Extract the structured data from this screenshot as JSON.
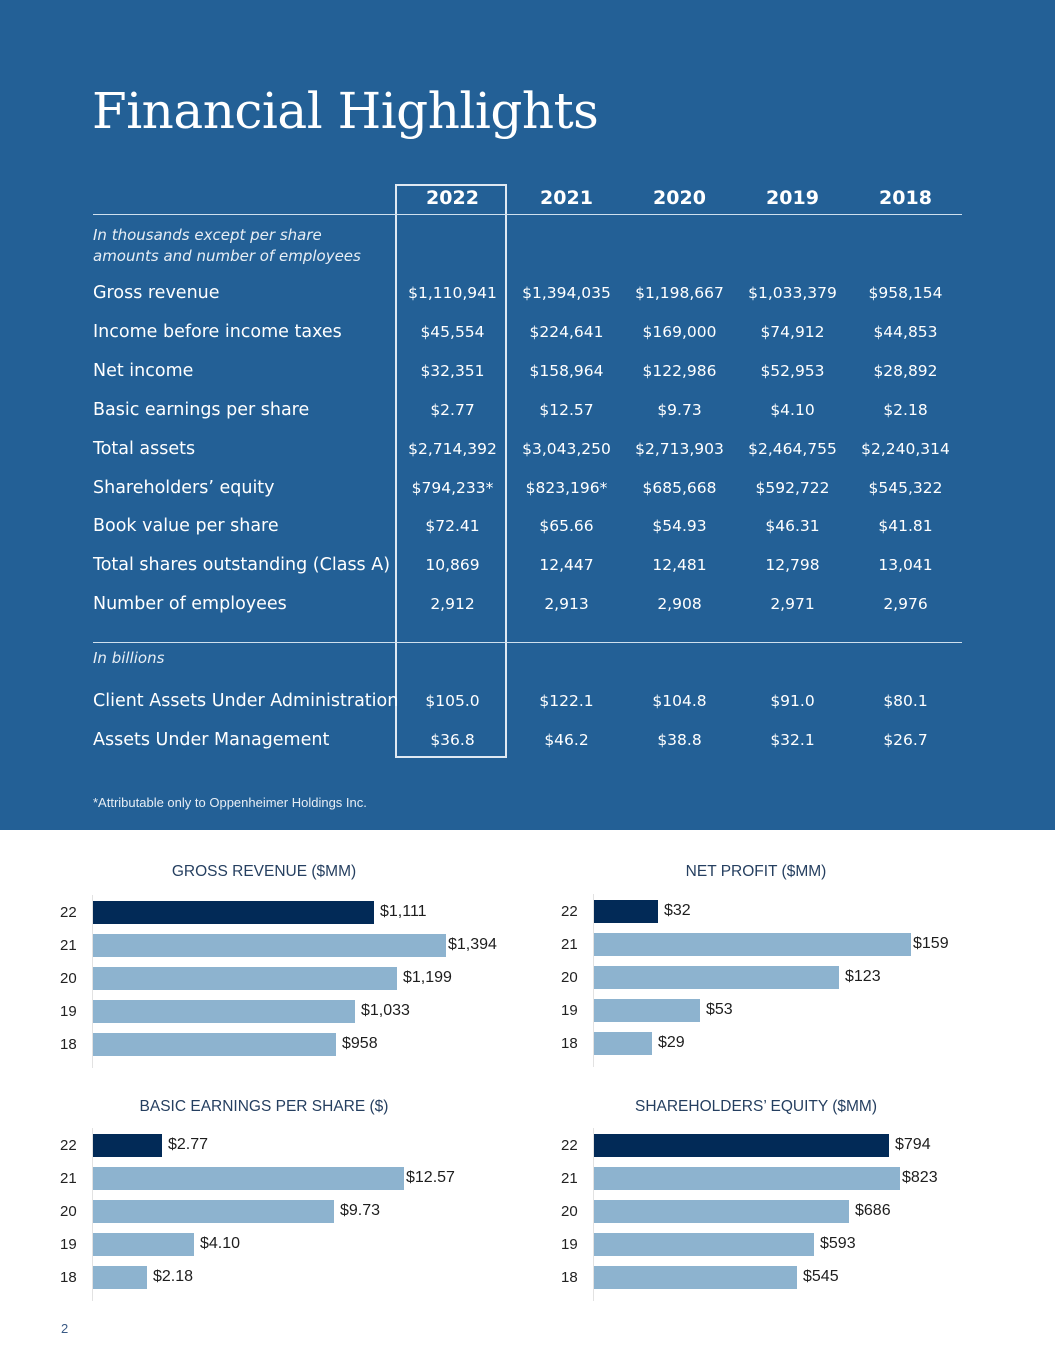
{
  "page": {
    "title": "Financial Highlights",
    "footnote": "*Attributable only to Oppenheimer Holdings Inc.",
    "page_number": "2",
    "colors": {
      "hero_bg": "#236096",
      "bar_current": "#022a57",
      "bar_prior": "#8db3cf",
      "chart_title": "#253f60"
    }
  },
  "table": {
    "years": [
      "2022",
      "2021",
      "2020",
      "2019",
      "2018"
    ],
    "highlighted_year": "2022",
    "section1_note": "In thousands except per share amounts and number of employees",
    "section1_note_line1": "In thousands except per share",
    "section1_note_line2": "amounts and number of employees",
    "section1_rows": [
      {
        "label": "Gross revenue",
        "values": [
          "$1,110,941",
          "$1,394,035",
          "$1,198,667",
          "$1,033,379",
          "$958,154"
        ]
      },
      {
        "label": "Income before income taxes",
        "values": [
          "$45,554",
          "$224,641",
          "$169,000",
          "$74,912",
          "$44,853"
        ]
      },
      {
        "label": "Net income",
        "values": [
          "$32,351",
          "$158,964",
          "$122,986",
          "$52,953",
          "$28,892"
        ]
      },
      {
        "label": "Basic earnings per share",
        "values": [
          "$2.77",
          "$12.57",
          "$9.73",
          "$4.10",
          "$2.18"
        ]
      },
      {
        "label": "Total assets",
        "values": [
          "$2,714,392",
          "$3,043,250",
          "$2,713,903",
          "$2,464,755",
          "$2,240,314"
        ]
      },
      {
        "label": "Shareholders’ equity",
        "values": [
          "$794,233*",
          "$823,196*",
          "$685,668",
          "$592,722",
          "$545,322"
        ]
      },
      {
        "label": "Book value per share",
        "values": [
          "$72.41",
          "$65.66",
          "$54.93",
          "$46.31",
          "$41.81"
        ]
      },
      {
        "label": "Total shares outstanding (Class A)",
        "values": [
          "10,869",
          "12,447",
          "12,481",
          "12,798",
          "13,041"
        ]
      },
      {
        "label": "Number of employees",
        "values": [
          "2,912",
          "2,913",
          "2,908",
          "2,971",
          "2,976"
        ]
      }
    ],
    "section2_note": "In billions",
    "section2_rows": [
      {
        "label": "Client Assets Under Administration",
        "values": [
          "$105.0",
          "$122.1",
          "$104.8",
          "$91.0",
          "$80.1"
        ]
      },
      {
        "label": "Assets Under Management",
        "values": [
          "$36.8",
          "$46.2",
          "$38.8",
          "$32.1",
          "$26.7"
        ]
      }
    ]
  },
  "chart_data": [
    {
      "type": "bar",
      "orientation": "horizontal",
      "title": "GROSS REVENUE ($MM)",
      "categories": [
        "22",
        "21",
        "20",
        "19",
        "18"
      ],
      "values": [
        1111,
        1394,
        1199,
        1033,
        958
      ],
      "labels": [
        "$1,111",
        "$1,394",
        "$1,199",
        "$1,033",
        "$958"
      ],
      "highlight_index": 0,
      "xlim": [
        0,
        1394
      ],
      "grid": false,
      "legend": "none"
    },
    {
      "type": "bar",
      "orientation": "horizontal",
      "title": "NET PROFIT ($MM)",
      "categories": [
        "22",
        "21",
        "20",
        "19",
        "18"
      ],
      "values": [
        32,
        159,
        123,
        53,
        29
      ],
      "labels": [
        "$32",
        "$159",
        "$123",
        "$53",
        "$29"
      ],
      "highlight_index": 0,
      "xlim": [
        0,
        159
      ],
      "grid": false,
      "legend": "none"
    },
    {
      "type": "bar",
      "orientation": "horizontal",
      "title": "BASIC EARNINGS PER SHARE ($)",
      "categories": [
        "22",
        "21",
        "20",
        "19",
        "18"
      ],
      "values": [
        2.77,
        12.57,
        9.73,
        4.1,
        2.18
      ],
      "labels": [
        "$2.77",
        "$12.57",
        "$9.73",
        "$4.10",
        "$2.18"
      ],
      "highlight_index": 0,
      "xlim": [
        0,
        12.57
      ],
      "grid": false,
      "legend": "none"
    },
    {
      "type": "bar",
      "orientation": "horizontal",
      "title": "SHAREHOLDERS’ EQUITY ($MM)",
      "categories": [
        "22",
        "21",
        "20",
        "19",
        "18"
      ],
      "values": [
        794,
        823,
        686,
        593,
        545
      ],
      "labels": [
        "$794",
        "$823",
        "$686",
        "$593",
        "$545"
      ],
      "highlight_index": 0,
      "xlim": [
        0,
        823
      ],
      "grid": false,
      "legend": "none"
    }
  ]
}
